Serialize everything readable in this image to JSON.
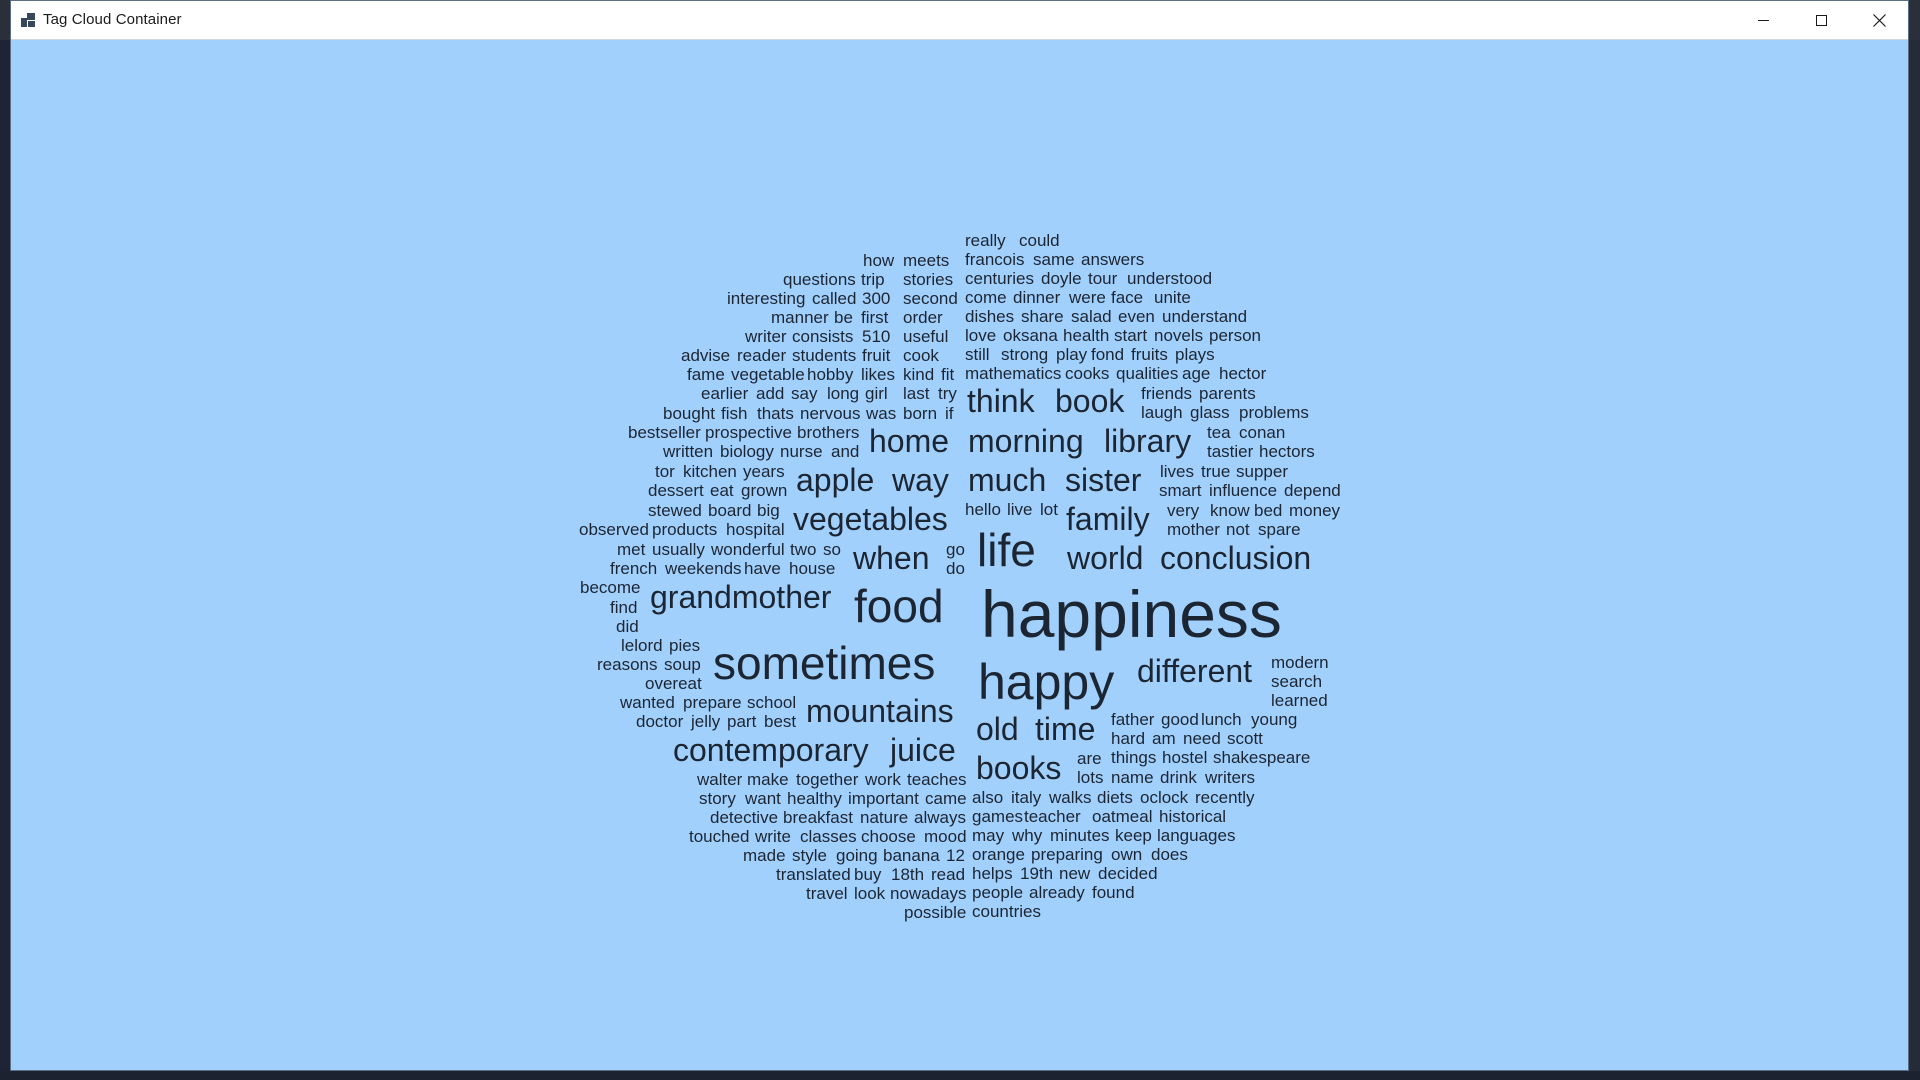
{
  "window": {
    "title": "Tag Cloud Container"
  },
  "titlebar_buttons": {
    "minimize_icon": "minimize-icon",
    "maximize_icon": "maximize-icon",
    "close_icon": "close-icon"
  },
  "colors": {
    "background": "#a2d0fd",
    "text": "#1c2633"
  },
  "cloud": {
    "words": [
      "really",
      "could",
      "how",
      "meets",
      "francois",
      "same",
      "answers",
      "questions",
      "trip",
      "stories",
      "centuries",
      "doyle",
      "tour",
      "understood",
      "interesting",
      "called",
      "300",
      "second",
      "come",
      "dinner",
      "were",
      "face",
      "unite",
      "manner",
      "be",
      "first",
      "order",
      "dishes",
      "share",
      "salad",
      "even",
      "understand",
      "writer",
      "consists",
      "510",
      "useful",
      "love",
      "oksana",
      "health",
      "start",
      "novels",
      "person",
      "advise",
      "reader",
      "students",
      "fruit",
      "cook",
      "still",
      "strong",
      "play",
      "fond",
      "fruits",
      "plays",
      "fame",
      "vegetable",
      "hobby",
      "likes",
      "kind",
      "fit",
      "mathematics",
      "cooks",
      "qualities",
      "age",
      "hector",
      "earlier",
      "add",
      "say",
      "long",
      "girl",
      "last",
      "try",
      "think",
      "book",
      "friends",
      "parents",
      "bought",
      "fish",
      "thats",
      "nervous",
      "was",
      "born",
      "if",
      "laugh",
      "glass",
      "problems",
      "bestseller",
      "prospective",
      "brothers",
      "home",
      "morning",
      "library",
      "tea",
      "conan",
      "written",
      "biology",
      "nurse",
      "and",
      "tastier",
      "hectors",
      "tor",
      "kitchen",
      "years",
      "apple",
      "way",
      "much",
      "sister",
      "lives",
      "true",
      "supper",
      "dessert",
      "eat",
      "grown",
      "smart",
      "influence",
      "depend",
      "stewed",
      "board",
      "big",
      "vegetables",
      "hello",
      "live",
      "lot",
      "family",
      "very",
      "know",
      "bed",
      "money",
      "observed",
      "products",
      "hospital",
      "mother",
      "not",
      "spare",
      "met",
      "usually",
      "wonderful",
      "two",
      "so",
      "go",
      "life",
      "french",
      "weekends",
      "have",
      "house",
      "when",
      "do",
      "world",
      "conclusion",
      "become",
      "grandmother",
      "food",
      "happiness",
      "find",
      "did",
      "lelord",
      "pies",
      "reasons",
      "soup",
      "sometimes",
      "modern",
      "happy",
      "different",
      "search",
      "overeat",
      "learned",
      "wanted",
      "prepare",
      "school",
      "mountains",
      "doctor",
      "jelly",
      "part",
      "best",
      "old",
      "time",
      "father",
      "good",
      "lunch",
      "young",
      "hard",
      "am",
      "need",
      "scott",
      "contemporary",
      "juice",
      "are",
      "things",
      "hostel",
      "shakespeare",
      "walter",
      "make",
      "together",
      "work",
      "teaches",
      "books",
      "lots",
      "name",
      "drink",
      "writers",
      "story",
      "want",
      "healthy",
      "important",
      "came",
      "also",
      "italy",
      "walks",
      "diets",
      "oclock",
      "recently",
      "detective",
      "breakfast",
      "nature",
      "always",
      "games",
      "teacher",
      "oatmeal",
      "historical",
      "touched",
      "write",
      "classes",
      "choose",
      "mood",
      "may",
      "why",
      "minutes",
      "keep",
      "languages",
      "made",
      "style",
      "going",
      "banana",
      "12",
      "orange",
      "preparing",
      "own",
      "does",
      "translated",
      "buy",
      "18th",
      "read",
      "helps",
      "19th",
      "new",
      "decided",
      "travel",
      "look",
      "nowadays",
      "people",
      "already",
      "found",
      "possible",
      "countries"
    ]
  }
}
